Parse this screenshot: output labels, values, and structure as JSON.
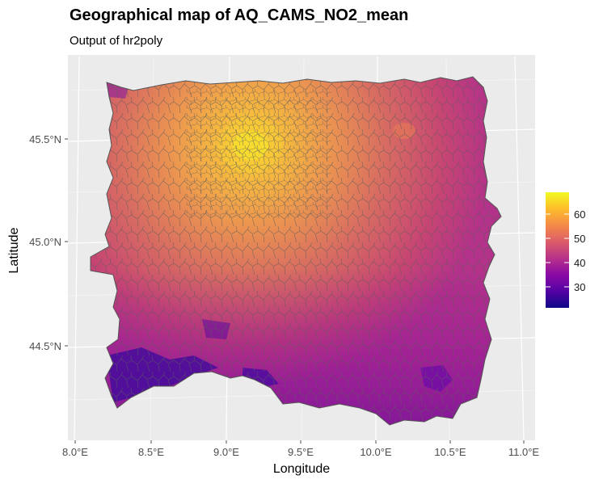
{
  "title": "Geographical map of AQ_CAMS_NO2_mean",
  "subtitle": "Output of hr2poly",
  "axes": {
    "xlabel": "Longitude",
    "ylabel": "Latitude",
    "x_ticks": [
      "8.0°E",
      "8.5°E",
      "9.0°E",
      "9.5°E",
      "10.0°E",
      "10.5°E",
      "11.0°E"
    ],
    "y_ticks": [
      "44.5°N",
      "45.0°N",
      "45.5°N"
    ]
  },
  "legend": {
    "ticks": [
      "30",
      "40",
      "50",
      "60"
    ],
    "range": [
      21,
      69
    ]
  },
  "colors": {
    "panel_bg": "#ebebeb",
    "grid": "#ffffff",
    "border": "#555555",
    "palette": [
      "#0d0887",
      "#5302a3",
      "#8b0aa5",
      "#b83289",
      "#db5c68",
      "#f48849",
      "#febd2a",
      "#f0f921"
    ]
  },
  "chart_data": {
    "type": "heatmap",
    "variable": "AQ_CAMS_NO2_mean",
    "x_range": [
      8.0,
      11.0
    ],
    "y_range": [
      44.2,
      45.8
    ],
    "value_range": [
      21,
      69
    ],
    "hotspot": {
      "lon": 9.2,
      "lat": 45.47,
      "value": 69
    }
  }
}
